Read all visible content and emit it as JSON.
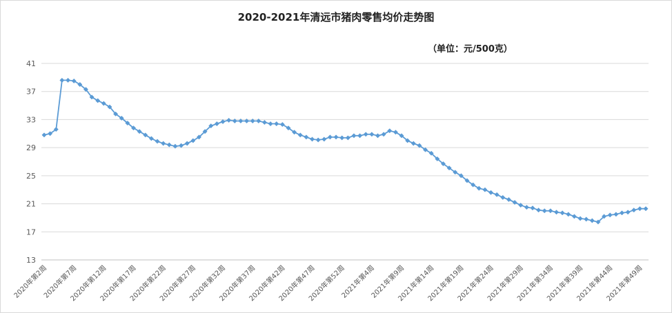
{
  "chart_data": {
    "type": "line",
    "title": "2020-2021年清远市猪肉零售均价走势图",
    "unit_label": "（单位：元/500克）",
    "ylim": [
      13,
      41
    ],
    "yticks": [
      13,
      17,
      21,
      25,
      29,
      33,
      37,
      41
    ],
    "grid": true,
    "legend": "none",
    "line_color": "#5b9bd5",
    "x_tick_labels": [
      "2020年第2周",
      "2020年第7周",
      "2020年第12周",
      "2020年第17周",
      "2020年第22周",
      "2020年第27周",
      "2020年第32周",
      "2020年第37周",
      "2020年第42周",
      "2020年第47周",
      "2020年第52周",
      "2021年第4周",
      "2021年第9周",
      "2021年第14周",
      "2021年第19周",
      "2021年第24周",
      "2021年第29周",
      "2021年第34周",
      "2021年第39周",
      "2021年第44周",
      "2021年第49周"
    ],
    "label_every": 5,
    "series": [
      {
        "values": [
          30.8,
          31.0,
          31.6,
          38.6,
          38.6,
          38.5,
          38.0,
          37.3,
          36.2,
          35.7,
          35.3,
          34.8,
          33.8,
          33.2,
          32.5,
          31.8,
          31.3,
          30.8,
          30.3,
          29.9,
          29.6,
          29.4,
          29.2,
          29.3,
          29.6,
          30.0,
          30.5,
          31.3,
          32.1,
          32.4,
          32.7,
          32.9,
          32.8,
          32.8,
          32.8,
          32.8,
          32.8,
          32.6,
          32.4,
          32.4,
          32.3,
          31.8,
          31.2,
          30.8,
          30.5,
          30.2,
          30.1,
          30.2,
          30.5,
          30.5,
          30.4,
          30.4,
          30.7,
          30.7,
          30.9,
          30.9,
          30.7,
          30.9,
          31.4,
          31.2,
          30.7,
          30.0,
          29.6,
          29.3,
          28.7,
          28.2,
          27.4,
          26.7,
          26.1,
          25.5,
          25.0,
          24.3,
          23.7,
          23.2,
          23.0,
          22.6,
          22.3,
          21.9,
          21.6,
          21.2,
          20.8,
          20.5,
          20.4,
          20.1,
          20.0,
          20.0,
          19.8,
          19.7,
          19.5,
          19.2,
          18.9,
          18.8,
          18.6,
          18.4,
          19.2,
          19.4,
          19.5,
          19.7,
          19.8,
          20.1,
          20.3,
          20.3
        ]
      }
    ]
  }
}
